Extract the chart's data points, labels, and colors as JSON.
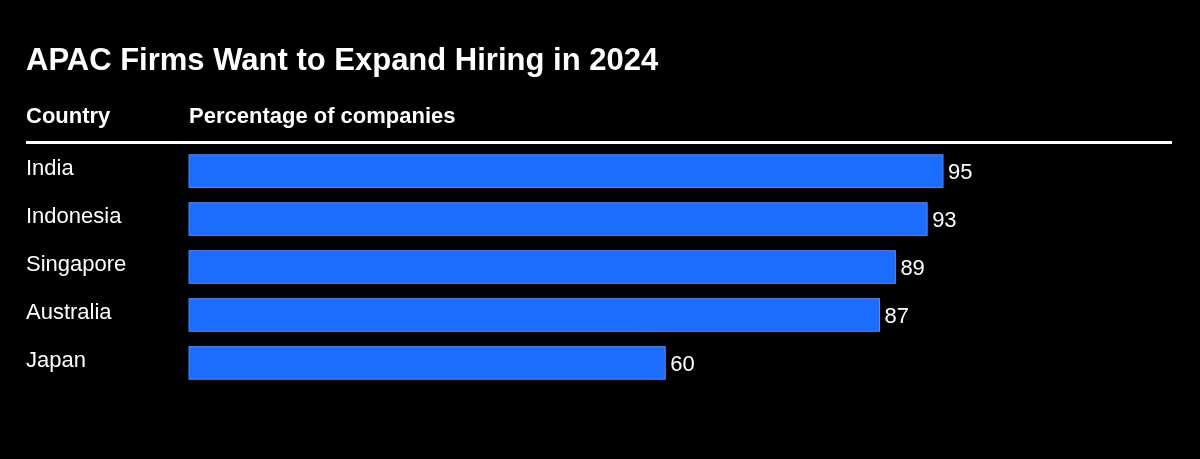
{
  "chart_data": {
    "type": "bar",
    "orientation": "horizontal",
    "title": "APAC Firms Want to Expand Hiring in 2024",
    "ylabel": "Country",
    "xlabel": "Percentage of companies",
    "categories": [
      "India",
      "Indonesia",
      "Singapore",
      "Australia",
      "Japan"
    ],
    "values": [
      95,
      93,
      89,
      87,
      60
    ],
    "color": "#1a6dff",
    "data_labels": true
  }
}
